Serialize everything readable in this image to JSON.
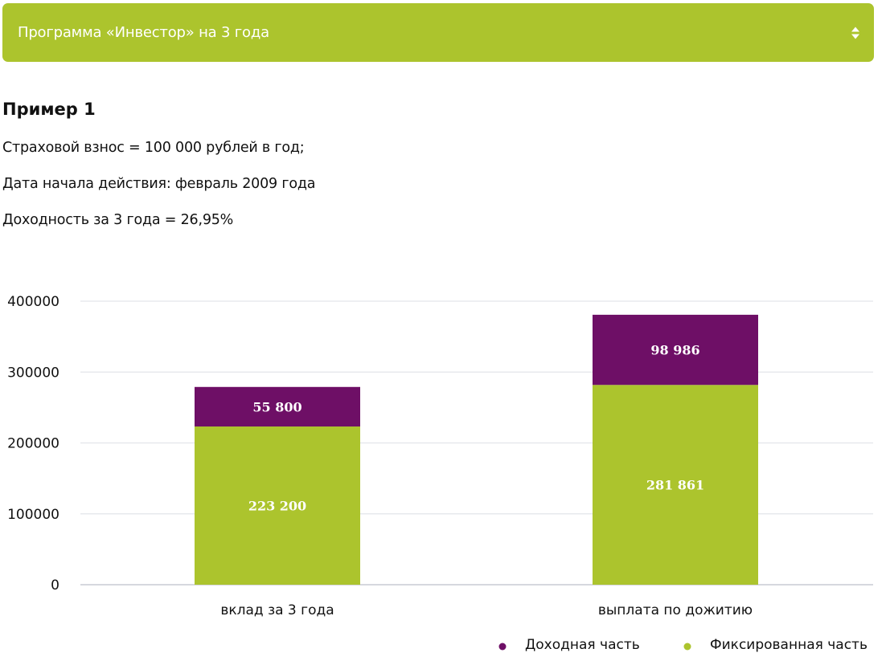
{
  "program_select": {
    "label": "Программа «Инвестор» на 3 года",
    "color": "#acc42d"
  },
  "example": {
    "title": "Пример 1",
    "lines": [
      "Страховой взнос = 100 000 рублей в год;",
      "Дата начала действия: февраль 2009 года",
      "Доходность за 3 года = 26,95%"
    ]
  },
  "chart_data": {
    "type": "bar",
    "stacked": true,
    "categories": [
      "вклад за 3 года",
      "выплата по дожитию"
    ],
    "series": [
      {
        "name": "Фиксированная часть",
        "values": [
          223200,
          281861
        ],
        "labels": [
          "223 200",
          "281 861"
        ],
        "color": "#acc42d"
      },
      {
        "name": "Доходная часть",
        "values": [
          55800,
          98986
        ],
        "labels": [
          "55 800",
          "98 986"
        ],
        "color": "#6e0f66"
      }
    ],
    "yticks": [
      0,
      100000,
      200000,
      300000,
      400000
    ],
    "ylim": [
      0,
      400000
    ],
    "grid": true,
    "legend": {
      "position": "bottom-right",
      "order": [
        "Доходная часть",
        "Фиксированная часть"
      ]
    }
  }
}
